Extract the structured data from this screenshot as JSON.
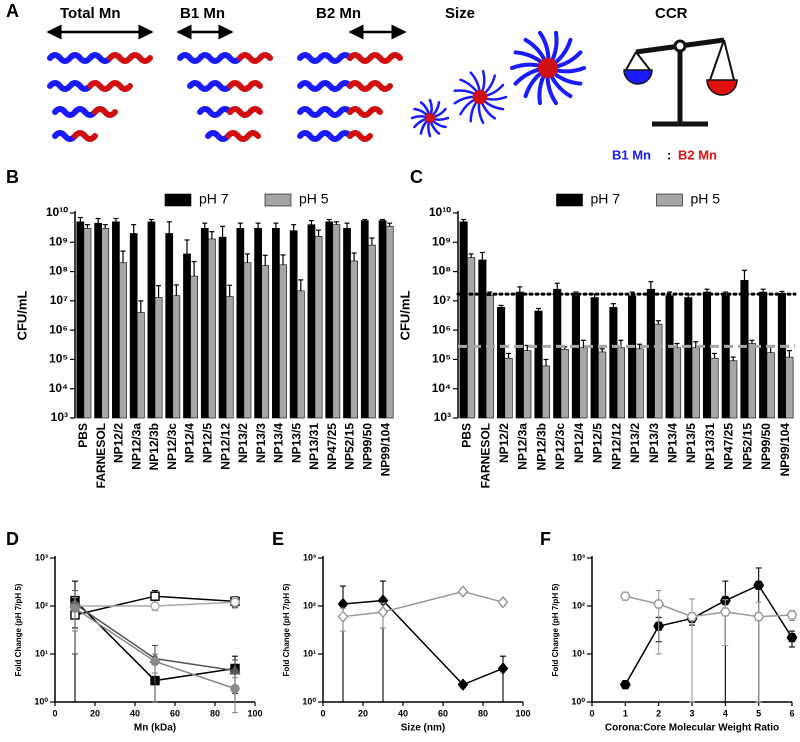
{
  "schematic": {
    "panel": "A",
    "labels": [
      "Total Mn",
      "B1 Mn",
      "B2 Mn",
      "Size",
      "CCR"
    ],
    "ratio_left": "B1 Mn",
    "ratio_sep": ":",
    "ratio_right": "B2 Mn"
  },
  "chart_data": [
    {
      "type": "bar",
      "panel": "B",
      "y_label": "CFU/mL",
      "yscale": "log",
      "legend": "top",
      "categories": [
        "PBS",
        "FARNESOL",
        "NP12/2",
        "NP12/3a",
        "NP12/3b",
        "NP12/3c",
        "NP12/4",
        "NP12/5",
        "NP12/12",
        "NP13/2",
        "NP13/3",
        "NP13/4",
        "NP13/5",
        "NP13/31",
        "NP47/25",
        "NP52/15",
        "NP99/50",
        "NP99/104"
      ],
      "series": [
        {
          "name": "pH 7",
          "color": "#000000",
          "values": [
            5000000000.0,
            4500000000.0,
            5000000000.0,
            2000000000.0,
            5000000000.0,
            2000000000.0,
            400000000.0,
            3000000000.0,
            1500000000.0,
            3000000000.0,
            3000000000.0,
            3000000000.0,
            2500000000.0,
            4000000000.0,
            5000000000.0,
            3000000000.0,
            5500000000.0,
            5500000000.0
          ],
          "errors": [
            2000000000.0,
            2000000000.0,
            1500000000.0,
            2000000000.0,
            1000000000.0,
            3000000000.0,
            800000000.0,
            1500000000.0,
            2000000000.0,
            1500000000.0,
            1500000000.0,
            1500000000.0,
            1500000000.0,
            1500000000.0,
            1000000000.0,
            1500000000.0,
            500000000.0,
            500000000.0
          ]
        },
        {
          "name": "pH 5",
          "color": "#a6a6a6",
          "values": [
            3000000000.0,
            3000000000.0,
            200000000.0,
            4000000.0,
            13000000.0,
            15000000.0,
            70000000.0,
            1300000000.0,
            14000000.0,
            200000000.0,
            160000000.0,
            170000000.0,
            22000000.0,
            1600000000.0,
            4000000000.0,
            230000000.0,
            800000000.0,
            3500000000.0
          ],
          "errors": [
            1000000000.0,
            1000000000.0,
            300000000.0,
            6000000.0,
            20000000.0,
            20000000.0,
            150000000.0,
            1000000000.0,
            20000000.0,
            200000000.0,
            200000000.0,
            200000000.0,
            30000000.0,
            1000000000.0,
            1000000000.0,
            200000000.0,
            600000000.0,
            1000000000.0
          ]
        }
      ],
      "ylim": [
        1000,
        10000000000
      ],
      "yticks": [
        {
          "value": 1000,
          "label": "10³"
        },
        {
          "value": 10000,
          "label": "10⁴"
        },
        {
          "value": 100000,
          "label": "10⁵"
        },
        {
          "value": 1000000,
          "label": "10⁶"
        },
        {
          "value": 10000000,
          "label": "10⁷"
        },
        {
          "value": 100000000,
          "label": "10⁸"
        },
        {
          "value": 1000000000,
          "label": "10⁹"
        },
        {
          "value": 10000000000,
          "label": "10¹⁰"
        }
      ]
    },
    {
      "type": "bar",
      "panel": "C",
      "y_label": "CFU/mL",
      "yscale": "log",
      "legend": "top",
      "categories": [
        "PBS",
        "FARNESOL",
        "NP12/2",
        "NP12/3a",
        "NP12/3b",
        "NP12/3c",
        "NP12/4",
        "NP12/5",
        "NP12/12",
        "NP13/2",
        "NP13/3",
        "NP13/4",
        "NP13/5",
        "NP13/31",
        "NP47/25",
        "NP52/15",
        "NP99/50",
        "NP99/104"
      ],
      "series": [
        {
          "name": "pH 7",
          "color": "#000000",
          "values": [
            5000000000.0,
            250000000.0,
            6000000.0,
            20000000.0,
            4500000.0,
            25000000.0,
            15000000.0,
            13000000.0,
            6000000.0,
            15000000.0,
            25000000.0,
            15000000.0,
            13000000.0,
            20000000.0,
            15000000.0,
            50000000.0,
            20000000.0,
            18000000.0
          ],
          "errors": [
            1000000000.0,
            200000000.0,
            1000000.0,
            10000000.0,
            1000000.0,
            15000000.0,
            5000000.0,
            4000000.0,
            2000000.0,
            5000000.0,
            20000000.0,
            5000000.0,
            3000000.0,
            5000000.0,
            5000000.0,
            60000000.0,
            5000000.0,
            3000000.0
          ]
        },
        {
          "name": "pH 5",
          "color": "#a6a6a6",
          "values": [
            300000000.0,
            15000000.0,
            110000.0,
            200000.0,
            60000.0,
            220000.0,
            250000.0,
            180000.0,
            250000.0,
            230000.0,
            1600000.0,
            250000.0,
            250000.0,
            110000.0,
            90000.0,
            350000.0,
            170000.0,
            120000.0
          ],
          "errors": [
            100000000.0,
            5000000.0,
            50000.0,
            100000.0,
            40000.0,
            50000.0,
            200000.0,
            50000.0,
            200000.0,
            100000.0,
            500000.0,
            100000.0,
            150000.0,
            50000.0,
            30000.0,
            100000.0,
            100000.0,
            80000.0
          ]
        }
      ],
      "reference_lines": [
        {
          "value": 17000000,
          "color": "#000000",
          "style": "dotted"
        },
        {
          "value": 280000,
          "color": "#a6a6a6",
          "style": "dashed"
        }
      ],
      "ylim": [
        1000,
        10000000000
      ],
      "yticks": [
        {
          "value": 1000,
          "label": "10³"
        },
        {
          "value": 10000,
          "label": "10⁴"
        },
        {
          "value": 100000,
          "label": "10⁵"
        },
        {
          "value": 1000000,
          "label": "10⁶"
        },
        {
          "value": 10000000,
          "label": "10⁷"
        },
        {
          "value": 100000000,
          "label": "10⁸"
        },
        {
          "value": 1000000000,
          "label": "10⁹"
        },
        {
          "value": 10000000000,
          "label": "10¹⁰"
        }
      ]
    },
    {
      "type": "line",
      "panel": "D",
      "x_label": "Mn (kDa)",
      "y_label": "Fold Change (pH 7/pH 5)",
      "yscale": "log",
      "series": [
        {
          "color": "#000000",
          "marker": "square",
          "marker_fill": "#000000",
          "x": [
            10,
            50,
            90
          ],
          "values": [
            130,
            2.8,
            5
          ],
          "errors": [
            200,
            0.5,
            4
          ]
        },
        {
          "color": "#000000",
          "marker": "square",
          "marker_fill": "#ffffff",
          "x": [
            10,
            50,
            90
          ],
          "values": [
            65,
            160,
            125
          ],
          "errors": [
            30,
            50,
            30
          ]
        },
        {
          "color": "#aaaaaa",
          "marker": "circle",
          "marker_fill": "#ffffff",
          "x": [
            10,
            50,
            90
          ],
          "values": [
            100,
            100,
            120
          ],
          "errors": [
            20,
            20,
            30
          ]
        },
        {
          "color": "#555555",
          "marker": "triangle",
          "marker_fill": "#555555",
          "x": [
            10,
            50,
            90
          ],
          "values": [
            110,
            8,
            4.5
          ],
          "errors": [
            100,
            7,
            3
          ]
        },
        {
          "color": "#888888",
          "marker": "circle",
          "marker_fill": "#888888",
          "x": [
            10,
            50,
            90
          ],
          "values": [
            90,
            7,
            1.9
          ],
          "errors": [
            60,
            3,
            1.3
          ]
        }
      ],
      "xlim": [
        0,
        100
      ],
      "xticks": [
        0,
        20,
        40,
        60,
        80,
        100
      ],
      "ylim": [
        1,
        1000
      ],
      "yticks": [
        {
          "value": 1,
          "label": "10⁰"
        },
        {
          "value": 10,
          "label": "10¹"
        },
        {
          "value": 100,
          "label": "10²"
        },
        {
          "value": 1000,
          "label": "10³"
        }
      ]
    },
    {
      "type": "line",
      "panel": "E",
      "x_label": "Size (nm)",
      "y_label": "Fold Change (pH 7/pH 5)",
      "yscale": "log",
      "series": [
        {
          "color": "#000000",
          "marker": "diamond",
          "marker_fill": "#000000",
          "x": [
            10,
            30,
            70,
            90
          ],
          "values": [
            110,
            130,
            2.3,
            5
          ],
          "errors": [
            150,
            200,
            0.3,
            4
          ]
        },
        {
          "color": "#999999",
          "marker": "diamond",
          "marker_fill": "#ffffff",
          "x": [
            10,
            30,
            70,
            90
          ],
          "values": [
            60,
            75,
            200,
            120
          ],
          "errors": [
            30,
            40,
            30,
            20
          ]
        }
      ],
      "xlim": [
        0,
        100
      ],
      "xticks": [
        0,
        20,
        40,
        60,
        80,
        100
      ],
      "ylim": [
        1,
        1000
      ],
      "yticks": [
        {
          "value": 1,
          "label": "10⁰"
        },
        {
          "value": 10,
          "label": "10¹"
        },
        {
          "value": 100,
          "label": "10²"
        },
        {
          "value": 1000,
          "label": "10³"
        }
      ]
    },
    {
      "type": "line",
      "panel": "F",
      "x_label": "Corona:Core Molecular Weight Ratio",
      "y_label": "Fold Change (pH 7/pH 5)",
      "yscale": "log",
      "series": [
        {
          "color": "#000000",
          "marker": "hexagon",
          "marker_fill": "#000000",
          "x": [
            1,
            2,
            3,
            4,
            5,
            6
          ],
          "values": [
            2.3,
            38,
            55,
            130,
            270,
            22
          ],
          "errors": [
            0.3,
            20,
            15,
            200,
            350,
            8
          ]
        },
        {
          "color": "#999999",
          "marker": "hexagon",
          "marker_fill": "#ffffff",
          "x": [
            1,
            2,
            3,
            4,
            5,
            6
          ],
          "values": [
            160,
            110,
            60,
            75,
            60,
            65
          ],
          "errors": [
            20,
            100,
            80,
            60,
            60,
            15
          ]
        }
      ],
      "xlim": [
        0,
        6
      ],
      "xticks": [
        0,
        1,
        2,
        3,
        4,
        5,
        6
      ],
      "ylim": [
        1,
        1000
      ],
      "yticks": [
        {
          "value": 1,
          "label": "10⁰"
        },
        {
          "value": 10,
          "label": "10¹"
        },
        {
          "value": 100,
          "label": "10²"
        },
        {
          "value": 1000,
          "label": "10³"
        }
      ]
    }
  ]
}
